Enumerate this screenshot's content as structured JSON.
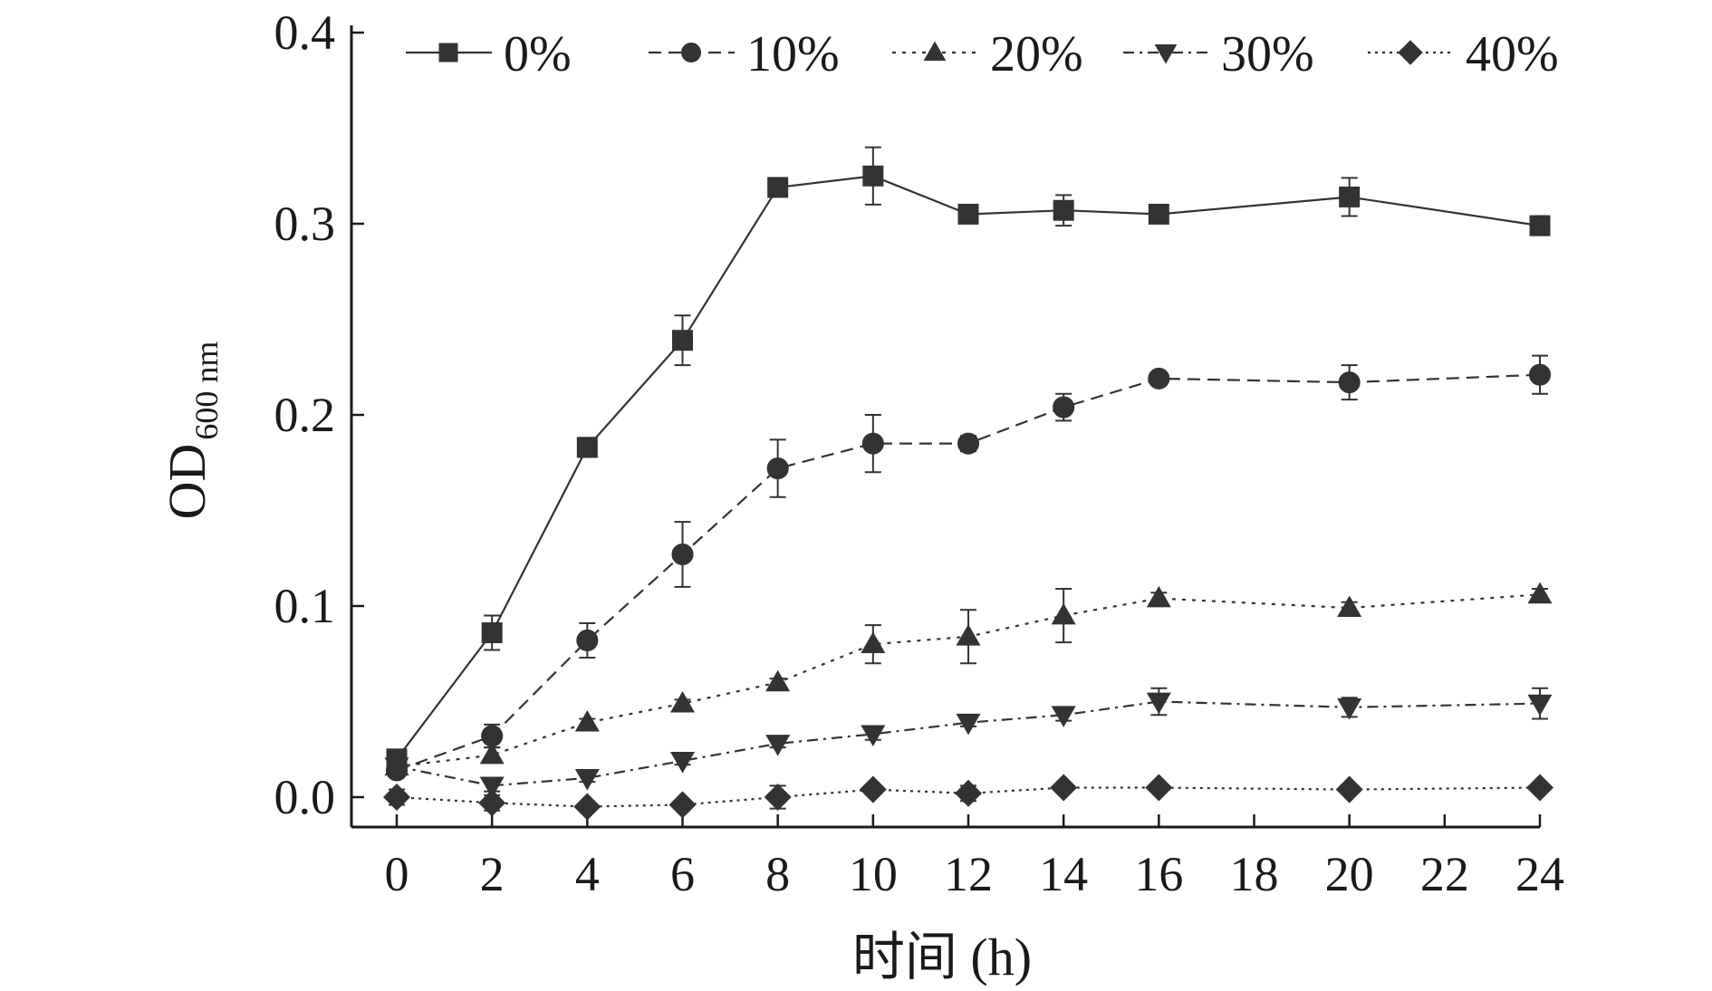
{
  "chart_data": {
    "type": "line",
    "xlabel": "时间 (h)",
    "ylabel": "OD",
    "ylabel_sub": "600 nm",
    "xlim": [
      0,
      24
    ],
    "ylim": [
      -0.02,
      0.4
    ],
    "x_ticks": [
      0,
      2,
      4,
      6,
      8,
      10,
      12,
      14,
      16,
      18,
      20,
      22,
      24
    ],
    "y_ticks": [
      0.0,
      0.1,
      0.2,
      0.3,
      0.4
    ],
    "y_tick_labels": [
      "0.0",
      "0.1",
      "0.2",
      "0.3",
      "0.4"
    ],
    "grid": false,
    "legend_position": "top",
    "series": [
      {
        "name": "0%",
        "marker": "square",
        "dash": "solid",
        "x": [
          0,
          2,
          4,
          6,
          8,
          10,
          12,
          14,
          16,
          20,
          24
        ],
        "y": [
          0.02,
          0.086,
          0.183,
          0.239,
          0.319,
          0.325,
          0.305,
          0.307,
          0.305,
          0.314,
          0.299
        ],
        "err": [
          0.003,
          0.009,
          0.005,
          0.013,
          0.002,
          0.015,
          0.003,
          0.008,
          0.002,
          0.01,
          0.005
        ]
      },
      {
        "name": "10%",
        "marker": "circle",
        "dash": "dashed",
        "x": [
          0,
          2,
          4,
          6,
          8,
          10,
          12,
          14,
          16,
          20,
          24
        ],
        "y": [
          0.014,
          0.032,
          0.082,
          0.127,
          0.172,
          0.185,
          0.185,
          0.204,
          0.219,
          0.217,
          0.221
        ],
        "err": [
          0.003,
          0.006,
          0.009,
          0.017,
          0.015,
          0.015,
          0.004,
          0.007,
          0.003,
          0.009,
          0.01
        ]
      },
      {
        "name": "20%",
        "marker": "triangle-up",
        "dash": "dotted",
        "x": [
          0,
          2,
          4,
          6,
          8,
          10,
          12,
          14,
          16,
          20,
          24
        ],
        "y": [
          0.016,
          0.022,
          0.039,
          0.049,
          0.06,
          0.08,
          0.084,
          0.095,
          0.104,
          0.099,
          0.106
        ],
        "err": [
          0.002,
          0.004,
          0.002,
          0.002,
          0.002,
          0.01,
          0.014,
          0.014,
          0.003,
          0.003,
          0.003
        ]
      },
      {
        "name": "30%",
        "marker": "triangle-down",
        "dash": "dashdot",
        "x": [
          0,
          2,
          4,
          6,
          8,
          10,
          12,
          14,
          16,
          20,
          24
        ],
        "y": [
          0.016,
          0.006,
          0.01,
          0.019,
          0.028,
          0.033,
          0.039,
          0.043,
          0.05,
          0.047,
          0.049
        ],
        "err": [
          0.002,
          0.003,
          0.002,
          0.002,
          0.002,
          0.003,
          0.002,
          0.003,
          0.007,
          0.005,
          0.008
        ]
      },
      {
        "name": "40%",
        "marker": "diamond",
        "dash": "fine-dotted",
        "x": [
          0,
          2,
          4,
          6,
          8,
          10,
          12,
          14,
          16,
          20,
          24
        ],
        "y": [
          0.0,
          -0.003,
          -0.005,
          -0.004,
          0.0,
          0.004,
          0.002,
          0.005,
          0.005,
          0.004,
          0.005
        ],
        "err": [
          0.004,
          0.004,
          0.002,
          0.002,
          0.006,
          0.002,
          0.004,
          0.002,
          0.002,
          0.002,
          0.002
        ]
      }
    ],
    "colors": {
      "line": "#333333",
      "axis": "#1a1a1a",
      "background": "#ffffff"
    }
  }
}
